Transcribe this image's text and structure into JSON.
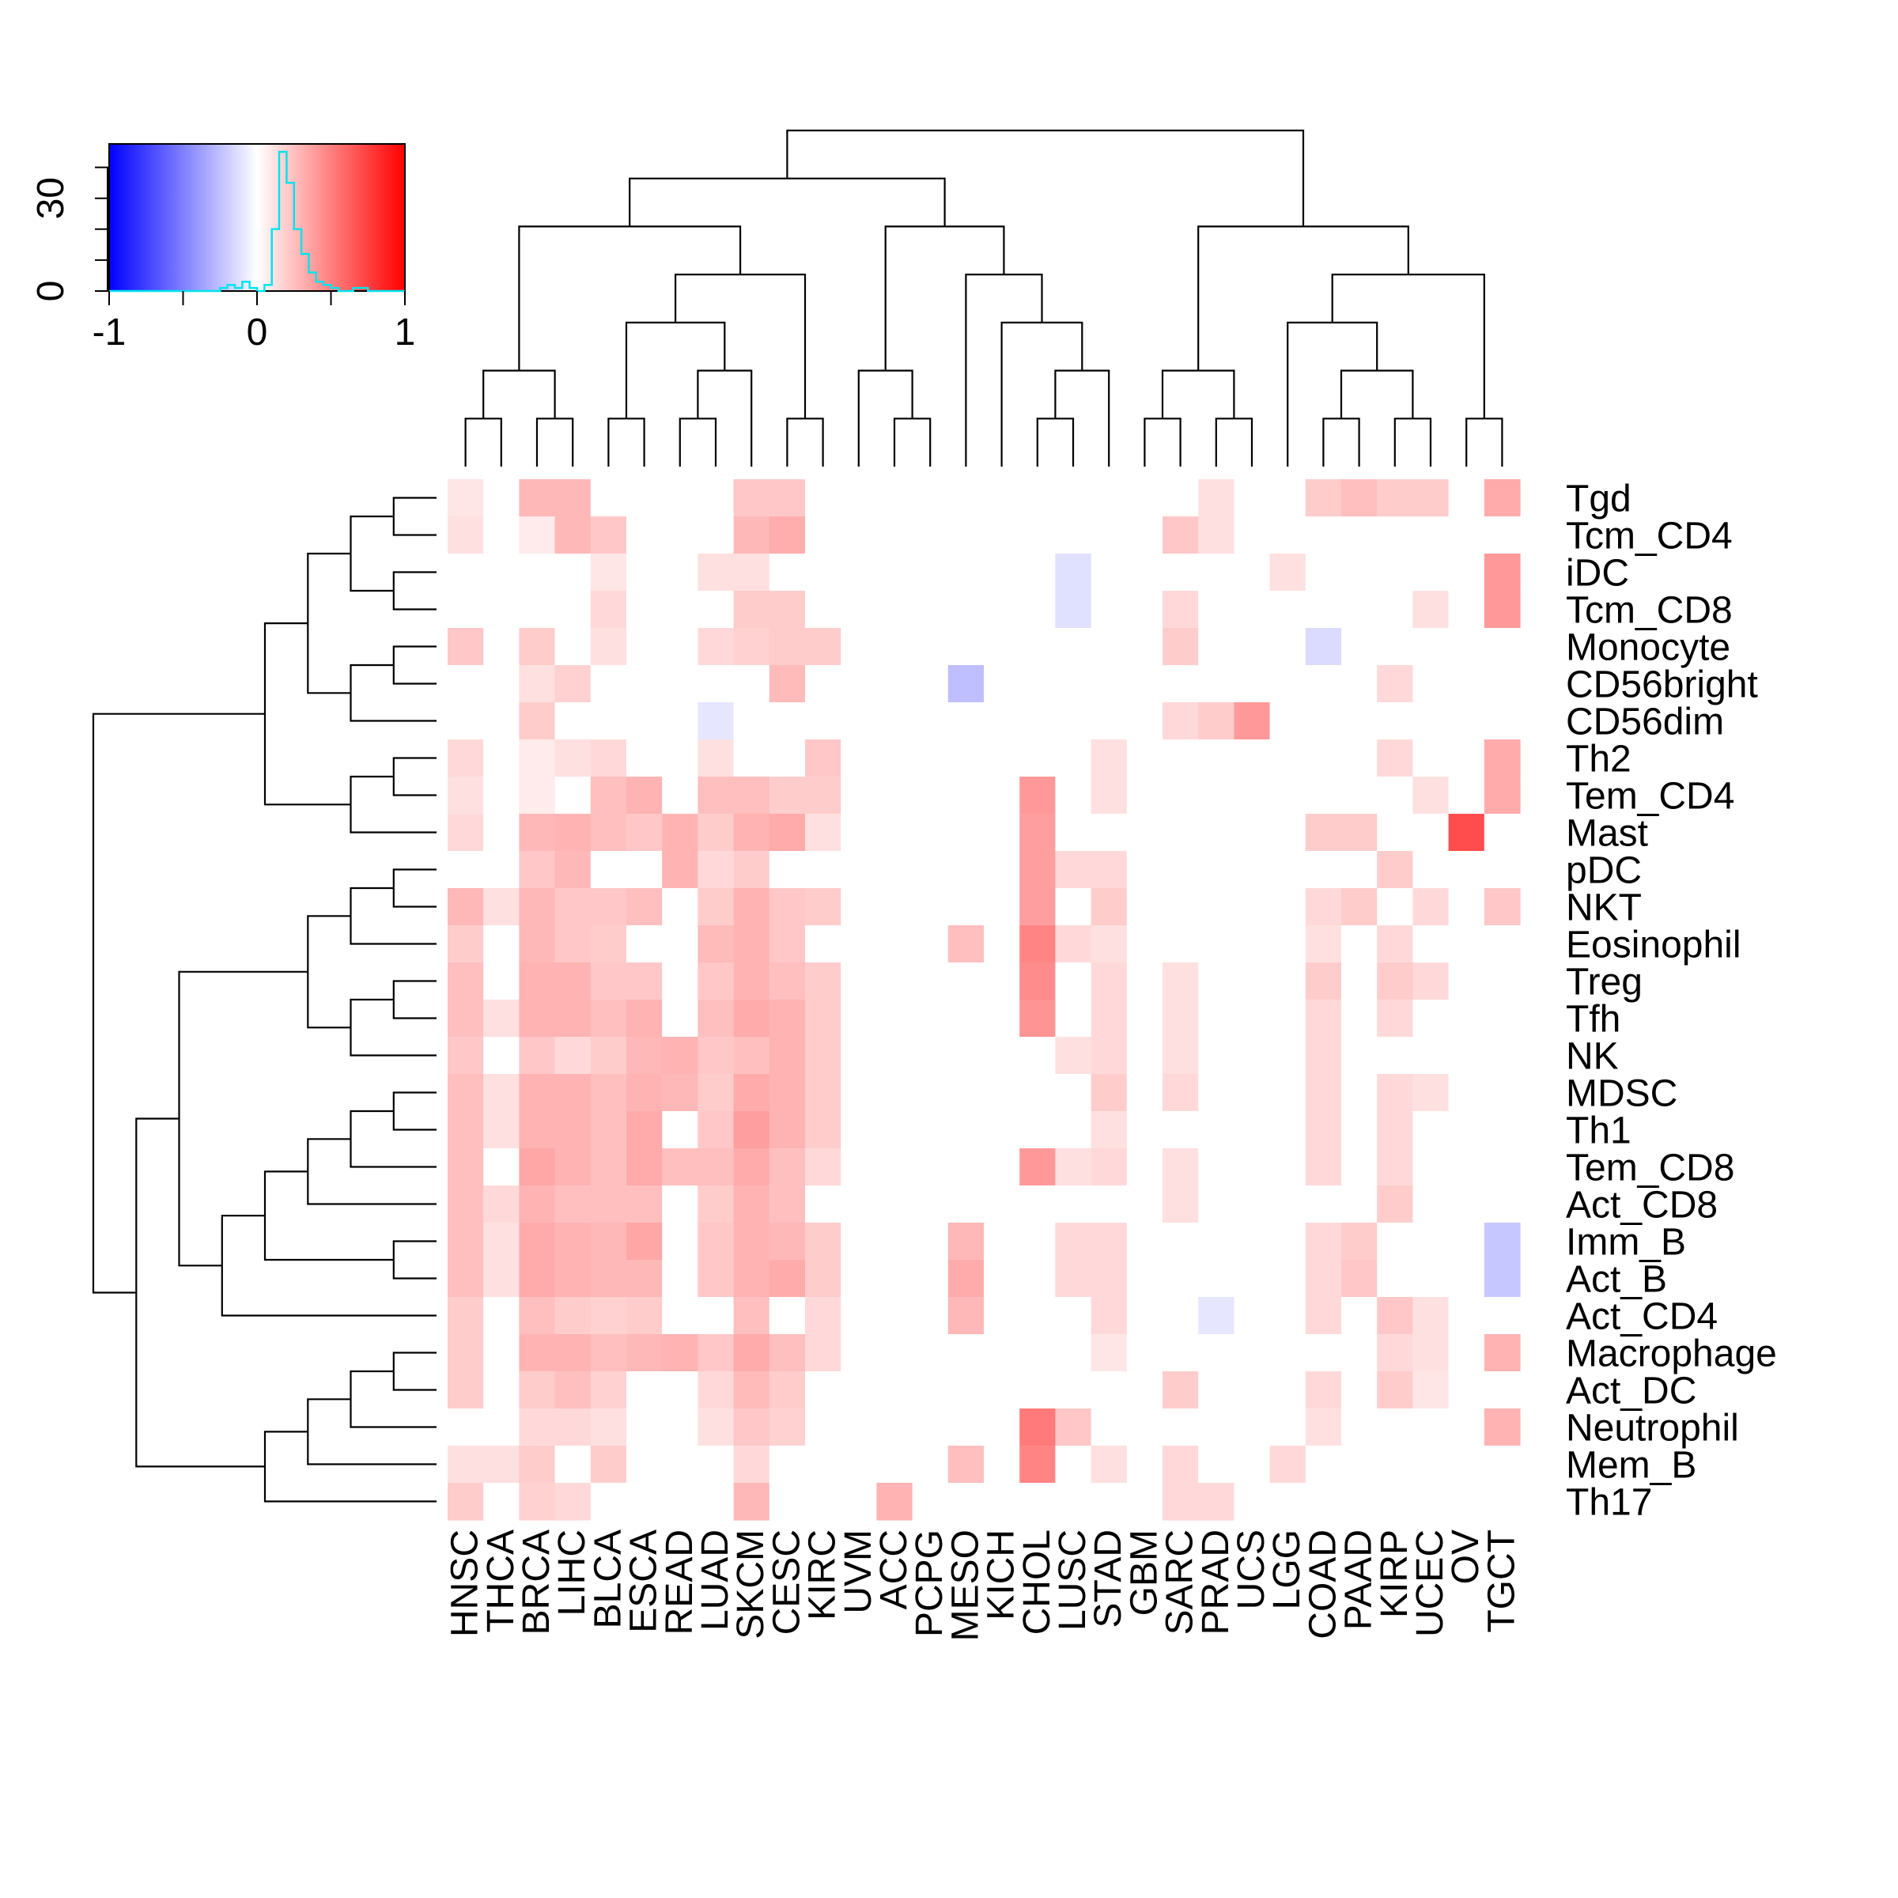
{
  "chart_data": {
    "type": "heatmap",
    "title": "",
    "xlabel": "",
    "ylabel": "",
    "zlim": [
      -1,
      1
    ],
    "colors": {
      "low": "#0000ff",
      "mid": "#ffffff",
      "high": "#ff0000",
      "density": "#00e5ee",
      "line": "#000000"
    },
    "columns": [
      "HNSC",
      "THCA",
      "BRCA",
      "LIHC",
      "BLCA",
      "ESCA",
      "READ",
      "LUAD",
      "SKCM",
      "CESC",
      "KIRC",
      "UVM",
      "ACC",
      "PCPG",
      "MESO",
      "KICH",
      "CHOL",
      "LUSC",
      "STAD",
      "GBM",
      "SARC",
      "PRAD",
      "UCS",
      "LGG",
      "COAD",
      "PAAD",
      "KIRP",
      "UCEC",
      "OV",
      "TGCT"
    ],
    "rows": [
      "Tgd",
      "Tcm_CD4",
      "iDC",
      "Tcm_CD8",
      "Monocyte",
      "CD56bright",
      "CD56dim",
      "Th2",
      "Tem_CD4",
      "Mast",
      "pDC",
      "NKT",
      "Eosinophil",
      "Treg",
      "Tfh",
      "NK",
      "MDSC",
      "Th1",
      "Tem_CD8",
      "Act_CD8",
      "Imm_B",
      "Act_B",
      "Act_CD4",
      "Macrophage",
      "Act_DC",
      "Neutrophil",
      "Mem_B",
      "Th17"
    ],
    "values": [
      [
        0.1,
        0,
        0.28,
        0.28,
        0,
        0,
        0,
        0,
        0.22,
        0.22,
        0,
        0,
        0,
        0,
        0,
        0,
        0,
        0,
        0,
        0,
        0,
        0.12,
        0,
        0,
        0.2,
        0.25,
        0.2,
        0.2,
        0,
        0.33
      ],
      [
        0.12,
        0,
        0.08,
        0.28,
        0.22,
        0,
        0,
        0,
        0.28,
        0.32,
        0,
        0,
        0,
        0,
        0,
        0,
        0,
        0,
        0,
        0,
        0.22,
        0.12,
        0,
        0,
        0,
        0,
        0,
        0,
        0,
        0
      ],
      [
        0,
        0,
        0,
        0,
        0.1,
        0,
        0,
        0.12,
        0.12,
        0,
        0,
        0,
        0,
        0,
        0,
        0,
        0,
        -0.12,
        0,
        0,
        0,
        0,
        0,
        0.12,
        0,
        0,
        0,
        0,
        0,
        0.4
      ],
      [
        0,
        0,
        0,
        0,
        0.15,
        0,
        0,
        0,
        0.2,
        0.2,
        0,
        0,
        0,
        0,
        0,
        0,
        0,
        -0.12,
        0,
        0,
        0.15,
        0,
        0,
        0,
        0,
        0,
        0,
        0.12,
        0,
        0.4
      ],
      [
        0.22,
        0,
        0.2,
        0,
        0.12,
        0,
        0,
        0.15,
        0.18,
        0.2,
        0.2,
        0,
        0,
        0,
        0,
        0,
        0,
        0,
        0,
        0,
        0.2,
        0,
        0,
        0,
        -0.14,
        0,
        0,
        0,
        0,
        0
      ],
      [
        0,
        0,
        0.12,
        0.18,
        0,
        0,
        0,
        0,
        0,
        0.27,
        0,
        0,
        0,
        0,
        -0.25,
        0,
        0,
        0,
        0,
        0,
        0,
        0,
        0,
        0,
        0,
        0,
        0.15,
        0,
        0,
        0
      ],
      [
        0,
        0,
        0.2,
        0,
        0,
        0,
        0,
        -0.1,
        0,
        0,
        0,
        0,
        0,
        0,
        0,
        0,
        0,
        0,
        0,
        0,
        0.15,
        0.2,
        0.4,
        0,
        0,
        0,
        0,
        0,
        0,
        0
      ],
      [
        0.15,
        0,
        0.08,
        0.12,
        0.15,
        0,
        0,
        0.12,
        0,
        0,
        0.22,
        0,
        0,
        0,
        0,
        0,
        0,
        0,
        0.12,
        0,
        0,
        0,
        0,
        0,
        0,
        0,
        0.15,
        0,
        0,
        0.33
      ],
      [
        0.12,
        0,
        0.08,
        0,
        0.25,
        0.3,
        0,
        0.25,
        0.25,
        0.2,
        0.2,
        0,
        0,
        0,
        0,
        0,
        0.4,
        0,
        0.12,
        0,
        0,
        0,
        0,
        0,
        0,
        0,
        0,
        0.12,
        0,
        0.33
      ],
      [
        0.15,
        0,
        0.28,
        0.3,
        0.25,
        0.22,
        0.3,
        0.2,
        0.3,
        0.33,
        0.12,
        0,
        0,
        0,
        0,
        0,
        0.38,
        0,
        0,
        0,
        0,
        0,
        0,
        0,
        0.2,
        0.2,
        0,
        0,
        0.7,
        0
      ],
      [
        0,
        0,
        0.22,
        0.28,
        0,
        0,
        0.3,
        0.15,
        0.2,
        0,
        0,
        0,
        0,
        0,
        0,
        0,
        0.38,
        0.15,
        0.15,
        0,
        0,
        0,
        0,
        0,
        0,
        0,
        0.2,
        0,
        0,
        0
      ],
      [
        0.28,
        0.12,
        0.28,
        0.22,
        0.22,
        0.25,
        0,
        0.2,
        0.3,
        0.22,
        0.2,
        0,
        0,
        0,
        0,
        0,
        0.38,
        0,
        0.2,
        0,
        0,
        0,
        0,
        0,
        0.15,
        0.2,
        0,
        0.15,
        0,
        0.22
      ],
      [
        0.2,
        0,
        0.28,
        0.22,
        0.2,
        0,
        0,
        0.27,
        0.3,
        0.22,
        0,
        0,
        0,
        0,
        0.25,
        0,
        0.48,
        0.15,
        0.12,
        0,
        0,
        0,
        0,
        0,
        0.12,
        0,
        0.15,
        0,
        0,
        0
      ],
      [
        0.25,
        0,
        0.3,
        0.3,
        0.22,
        0.22,
        0,
        0.22,
        0.3,
        0.25,
        0.2,
        0,
        0,
        0,
        0,
        0,
        0.45,
        0,
        0.15,
        0,
        0.12,
        0,
        0,
        0,
        0.2,
        0,
        0.2,
        0.15,
        0,
        0
      ],
      [
        0.25,
        0.12,
        0.3,
        0.3,
        0.25,
        0.3,
        0,
        0.25,
        0.33,
        0.3,
        0.2,
        0,
        0,
        0,
        0,
        0,
        0.42,
        0,
        0.15,
        0,
        0.12,
        0,
        0,
        0,
        0.15,
        0,
        0.15,
        0,
        0,
        0
      ],
      [
        0.22,
        0,
        0.22,
        0.15,
        0.2,
        0.28,
        0.3,
        0.22,
        0.25,
        0.3,
        0.2,
        0,
        0,
        0,
        0,
        0,
        0,
        0.12,
        0.15,
        0,
        0.12,
        0,
        0,
        0,
        0.15,
        0,
        0,
        0,
        0,
        0
      ],
      [
        0.25,
        0.12,
        0.3,
        0.3,
        0.25,
        0.3,
        0.28,
        0.2,
        0.33,
        0.3,
        0.2,
        0,
        0,
        0,
        0,
        0,
        0,
        0,
        0.2,
        0,
        0.15,
        0,
        0,
        0,
        0.15,
        0,
        0.15,
        0.12,
        0,
        0
      ],
      [
        0.25,
        0.12,
        0.3,
        0.3,
        0.25,
        0.33,
        0,
        0.22,
        0.38,
        0.3,
        0.2,
        0,
        0,
        0,
        0,
        0,
        0,
        0,
        0.12,
        0,
        0,
        0,
        0,
        0,
        0.15,
        0,
        0.15,
        0,
        0,
        0
      ],
      [
        0.25,
        0,
        0.35,
        0.3,
        0.25,
        0.33,
        0.25,
        0.25,
        0.33,
        0.25,
        0.15,
        0,
        0,
        0,
        0,
        0,
        0.4,
        0.12,
        0.15,
        0,
        0.12,
        0,
        0,
        0,
        0.15,
        0,
        0.15,
        0,
        0,
        0
      ],
      [
        0.25,
        0.15,
        0.3,
        0.25,
        0.25,
        0.25,
        0,
        0.2,
        0.3,
        0.25,
        0,
        0,
        0,
        0,
        0,
        0,
        0,
        0,
        0,
        0,
        0.12,
        0,
        0,
        0,
        0,
        0,
        0.2,
        0,
        0,
        0
      ],
      [
        0.25,
        0.12,
        0.33,
        0.3,
        0.28,
        0.35,
        0,
        0.22,
        0.3,
        0.28,
        0.2,
        0,
        0,
        0,
        0.28,
        0,
        0,
        0.15,
        0.15,
        0,
        0,
        0,
        0,
        0,
        0.15,
        0.2,
        0,
        0,
        0,
        -0.22
      ],
      [
        0.25,
        0.12,
        0.33,
        0.3,
        0.28,
        0.28,
        0,
        0.22,
        0.3,
        0.33,
        0.2,
        0,
        0,
        0,
        0.33,
        0,
        0,
        0.15,
        0.15,
        0,
        0,
        0,
        0,
        0,
        0.15,
        0.22,
        0,
        0,
        0,
        -0.22
      ],
      [
        0.2,
        0,
        0.25,
        0.2,
        0.18,
        0.2,
        0,
        0,
        0.25,
        0,
        0.15,
        0,
        0,
        0,
        0.28,
        0,
        0,
        0,
        0.15,
        0,
        0,
        -0.1,
        0,
        0,
        0.15,
        0,
        0.22,
        0.12,
        0,
        0
      ],
      [
        0.2,
        0,
        0.3,
        0.3,
        0.25,
        0.28,
        0.3,
        0.22,
        0.33,
        0.25,
        0.15,
        0,
        0,
        0,
        0,
        0,
        0,
        0,
        0.1,
        0,
        0,
        0,
        0,
        0,
        0,
        0,
        0.15,
        0.12,
        0,
        0.3
      ],
      [
        0.2,
        0,
        0.2,
        0.25,
        0.18,
        0,
        0,
        0.15,
        0.27,
        0.2,
        0,
        0,
        0,
        0,
        0,
        0,
        0,
        0,
        0,
        0,
        0.2,
        0,
        0,
        0,
        0.15,
        0,
        0.2,
        0.1,
        0,
        0
      ],
      [
        0,
        0,
        0.15,
        0.15,
        0.12,
        0,
        0,
        0.12,
        0.22,
        0.18,
        0,
        0,
        0,
        0,
        0,
        0,
        0.52,
        0.22,
        0,
        0,
        0,
        0,
        0,
        0,
        0.12,
        0,
        0,
        0,
        0,
        0.3
      ],
      [
        0.12,
        0.12,
        0.2,
        0,
        0.2,
        0,
        0,
        0,
        0.15,
        0,
        0,
        0,
        0,
        0,
        0.25,
        0,
        0.48,
        0,
        0.12,
        0,
        0.15,
        0,
        0,
        0.15,
        0,
        0,
        0,
        0,
        0,
        0
      ],
      [
        0.2,
        0,
        0.18,
        0.15,
        0,
        0,
        0,
        0,
        0.28,
        0,
        0,
        0,
        0.3,
        0,
        0,
        0,
        0,
        0,
        0,
        0,
        0.15,
        0.15,
        0,
        0,
        0,
        0,
        0,
        0,
        0,
        0
      ]
    ],
    "color_key": {
      "ticks": [
        -1,
        0,
        1
      ],
      "tick_labels": [
        "-1",
        "0",
        "1"
      ],
      "count_ticks": [
        0,
        30
      ],
      "count_tick_labels": [
        "0",
        "30"
      ],
      "count_max": 45,
      "histogram": [
        [
          -0.25,
          1
        ],
        [
          -0.2,
          2
        ],
        [
          -0.15,
          1
        ],
        [
          -0.1,
          3
        ],
        [
          -0.05,
          1
        ],
        [
          0.0,
          0
        ],
        [
          0.05,
          2
        ],
        [
          0.1,
          20
        ],
        [
          0.15,
          45
        ],
        [
          0.2,
          35
        ],
        [
          0.25,
          20
        ],
        [
          0.3,
          12
        ],
        [
          0.35,
          6
        ],
        [
          0.4,
          3
        ],
        [
          0.45,
          2
        ],
        [
          0.5,
          1
        ],
        [
          0.55,
          0
        ],
        [
          0.6,
          0
        ],
        [
          0.65,
          1
        ],
        [
          0.7,
          1
        ],
        [
          0.75,
          0
        ]
      ]
    }
  }
}
